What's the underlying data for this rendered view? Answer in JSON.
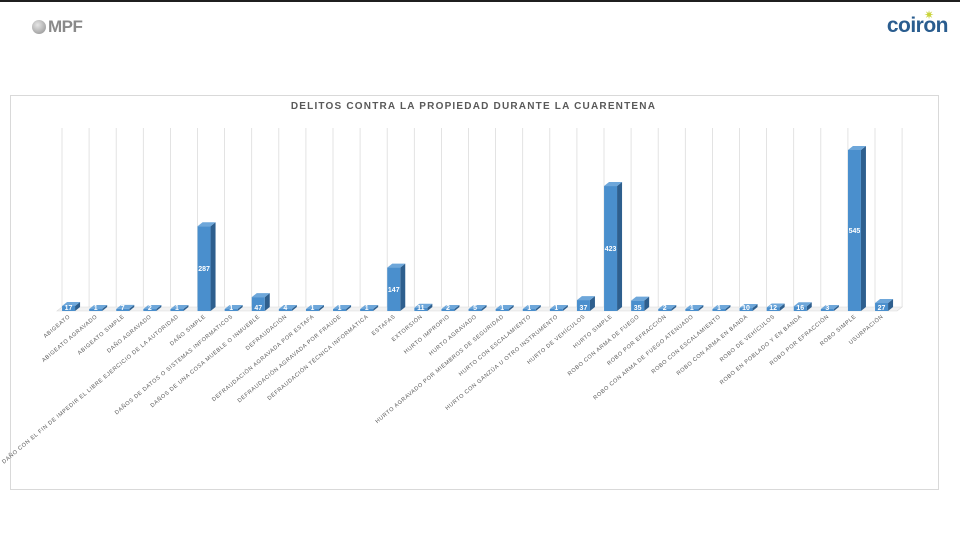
{
  "header": {
    "left_logo_text": "MPF",
    "right_logo_text": "coiron"
  },
  "colors": {
    "bar_front": "#4a8fcd",
    "bar_side": "#2e5f8e",
    "bar_top": "#6ea7da",
    "grid": "#dcdcdc",
    "floor": "#d9d9d9"
  },
  "chart_data": {
    "type": "bar",
    "title": "DELITOS  CONTRA  LA  PROPIEDAD  DURANTE  LA  CUARENTENA",
    "xlabel": "",
    "ylabel": "",
    "grid": true,
    "categories": [
      "ABIGEATO",
      "ABIGEATO AGRAVADO",
      "ABIGEATO SIMPLE",
      "DAÑO AGRAVADO",
      "DAÑO CON EL FIN DE IMPEDIR EL LIBRE EJERCICIO DE LA AUTORIDAD",
      "DAÑO SIMPLE",
      "DAÑOS DE DATOS O SISTEMAS INFORMATICOS",
      "DAÑOS DE UNA COSA MUEBLE O INMUEBLE",
      "DEFRAUDACIÓN",
      "DEFRAUDACIÓN AGRAVADA POR ESTAFA",
      "DEFRAUDACIÓN AGRAVADA POR FRAUDE",
      "DEFRAUDACIÓN TÉCNICA INFORMÁTICA",
      "ESTAFAS",
      "EXTORSIÓN",
      "HURTO IMPROPIO",
      "HURTO AGRAVADO",
      "HURTO AGRAVADO POR MIEMBROS DE SEGURIDAD",
      "HURTO CON ESCALAMIENTO",
      "HURTO CON GANZÚA U OTRO INSTRUMENTO",
      "HURTO DE VEHÍCULOS",
      "HURTO SIMPLE",
      "ROBO CON ARMA DE FUEGO",
      "ROBO POR EFRACCIÓN",
      "ROBO CON ARMA DE FUEGO ATENUADO",
      "ROBO CON ESCALAMIENTO",
      "ROBO CON ARMA EN BANDA",
      "ROBO DE VEHÍCULOS",
      "ROBO EN POBLADO Y EN BANDA",
      "ROBO POR EFRACCIÓN",
      "ROBO SIMPLE",
      "USURPACIÓN"
    ],
    "values": [
      17,
      1,
      7,
      2,
      1,
      287,
      1,
      47,
      4,
      1,
      1,
      1,
      147,
      11,
      2,
      5,
      1,
      1,
      1,
      37,
      423,
      35,
      2,
      1,
      1,
      10,
      12,
      16,
      3,
      545,
      27
    ],
    "value_labels": [
      "17",
      "1",
      "7",
      "2",
      "1",
      "287",
      "1",
      "47",
      "4",
      "1",
      "1",
      "1",
      "147",
      "11",
      "2",
      "5",
      "1",
      "1",
      "1",
      "37",
      "423",
      "35",
      "2",
      "1",
      "1",
      "10",
      "12",
      "16",
      "3",
      "545",
      "27"
    ],
    "ylim": [
      0,
      600
    ]
  }
}
